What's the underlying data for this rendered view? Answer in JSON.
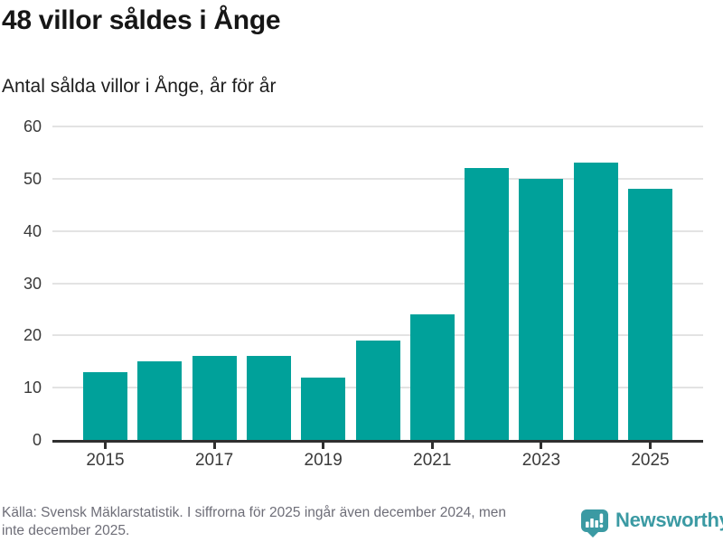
{
  "header": {
    "title": "48 villor såldes i Ånge",
    "subtitle": "Antal sålda villor i Ånge, år för år"
  },
  "chart_data": {
    "type": "bar",
    "title": "48 villor såldes i Ånge",
    "subtitle": "Antal sålda villor i Ånge, år för år",
    "categories": [
      "2015",
      "2016",
      "2017",
      "2018",
      "2019",
      "2020",
      "2021",
      "2022",
      "2023",
      "2024",
      "2025"
    ],
    "values": [
      13,
      15,
      16,
      16,
      12,
      19,
      24,
      52,
      50,
      53,
      48
    ],
    "xlabel": "",
    "ylabel": "",
    "ylim": [
      0,
      60
    ],
    "yticks": [
      0,
      10,
      20,
      30,
      40,
      50,
      60
    ],
    "xtick_labels": [
      "2015",
      "2017",
      "2019",
      "2021",
      "2023",
      "2025"
    ],
    "grid": true,
    "legend_position": "none",
    "bar_color": "#00a19a",
    "grid_color": "#e3e3e3",
    "axis_color": "#2f2f2f"
  },
  "footer": {
    "source_line1": "Källa: Svensk Mäklarstatistik. I siffrorna för 2025 ingår även december 2024, men",
    "source_line2": "inte december 2025.",
    "logo_text": "Newsworthy",
    "logo_color": "#3b9aa3",
    "logo_icon": "bar-chart-speech-bubble"
  }
}
